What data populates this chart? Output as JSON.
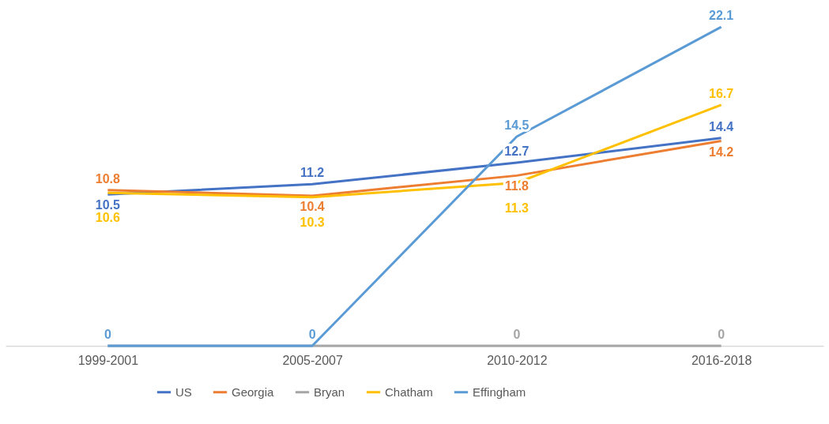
{
  "chart_data": {
    "type": "line",
    "categories": [
      "1999-2001",
      "2005-2007",
      "2010-2012",
      "2016-2018"
    ],
    "series": [
      {
        "name": "US",
        "color": "#4472c4",
        "values": [
          10.5,
          11.2,
          12.7,
          14.4
        ]
      },
      {
        "name": "Georgia",
        "color": "#ed7d31",
        "values": [
          10.8,
          10.4,
          11.8,
          14.2
        ]
      },
      {
        "name": "Bryan",
        "color": "#a5a5a5",
        "values": [
          0,
          0,
          0,
          0
        ],
        "value_labels": [
          null,
          null,
          "0",
          "0"
        ]
      },
      {
        "name": "Chatham",
        "color": "#ffc000",
        "values": [
          10.6,
          10.3,
          11.3,
          16.7
        ]
      },
      {
        "name": "Effingham",
        "color": "#5b9bd5",
        "values": [
          0,
          0,
          14.5,
          22.1
        ]
      }
    ],
    "data_labels": true,
    "legend": "bottom",
    "grid": false,
    "marker": "none",
    "line_style": "solid"
  }
}
